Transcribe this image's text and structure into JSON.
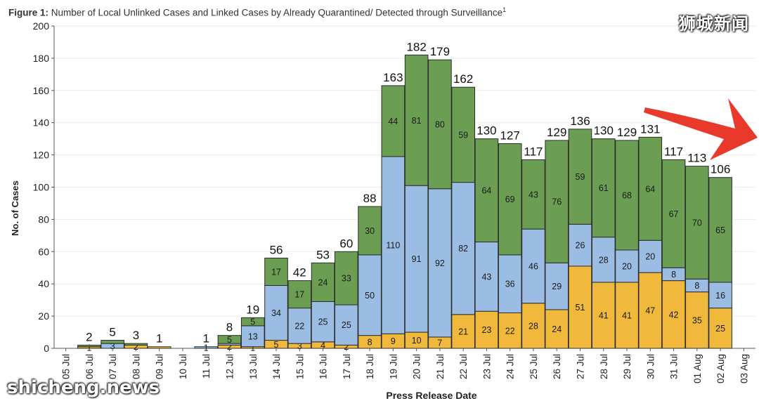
{
  "figure": {
    "label": "Figure 1:",
    "caption": "Number of Local Unlinked Cases and Linked Cases by Already Quarantined/ Detected through Surveillance",
    "footnote_marker": "1"
  },
  "watermarks": {
    "top_right": "狮城新闻",
    "bottom_left": "shicheng.news"
  },
  "annotation": {
    "shape": "red-arrow-icon",
    "color": "#e8392a"
  },
  "chart_data": {
    "type": "bar",
    "stacked": true,
    "xlabel": "Press Release Date",
    "ylabel": "No. of Cases",
    "ylim": [
      0,
      200
    ],
    "yticks": [
      0,
      20,
      40,
      60,
      80,
      100,
      120,
      140,
      160,
      180,
      200
    ],
    "grid": true,
    "categories": [
      "05 Jul",
      "06 Jul",
      "07 Jul",
      "08 Jul",
      "09 Jul",
      "10 Jul",
      "11 Jul",
      "12 Jul",
      "13 Jul",
      "14 Jul",
      "15 Jul",
      "16 Jul",
      "17 Jul",
      "18 Jul",
      "19 Jul",
      "20 Jul",
      "21 Jul",
      "22 Jul",
      "23 Jul",
      "24 Jul",
      "25 Jul",
      "26 Jul",
      "27 Jul",
      "28 Jul",
      "29 Jul",
      "30 Jul",
      "31 Jul",
      "01 Aug",
      "02 Aug",
      "03 Aug"
    ],
    "series": [
      {
        "color": "#f0b93c",
        "values": [
          null,
          1,
          null,
          2,
          1,
          null,
          null,
          2,
          1,
          5,
          3,
          4,
          2,
          8,
          9,
          10,
          7,
          21,
          23,
          22,
          28,
          24,
          51,
          41,
          41,
          47,
          42,
          35,
          25,
          null
        ],
        "labels": [
          "",
          "1",
          "",
          "2",
          "",
          "",
          "",
          "2",
          "1",
          "5",
          "3",
          "4",
          "2",
          "8",
          "9",
          "10",
          "7",
          "21",
          "23",
          "22",
          "28",
          "24",
          "51",
          "41",
          "41",
          "47",
          "42",
          "35",
          "25",
          ""
        ]
      },
      {
        "color": "#9bbde3",
        "values": [
          null,
          null,
          3,
          null,
          null,
          null,
          1,
          1,
          13,
          34,
          22,
          25,
          25,
          50,
          110,
          91,
          92,
          82,
          43,
          36,
          46,
          29,
          26,
          28,
          20,
          20,
          8,
          8,
          16,
          null
        ],
        "labels": [
          "",
          "",
          "3",
          "",
          "",
          "",
          "1",
          "",
          "13",
          "34",
          "22",
          "25",
          "25",
          "50",
          "110",
          "91",
          "92",
          "82",
          "43",
          "36",
          "46",
          "29",
          "26",
          "28",
          "20",
          "20",
          "8",
          "8",
          "16",
          ""
        ]
      },
      {
        "color": "#6b9e52",
        "values": [
          null,
          1,
          2,
          1,
          null,
          null,
          null,
          5,
          5,
          17,
          17,
          24,
          33,
          30,
          44,
          81,
          80,
          59,
          64,
          69,
          43,
          76,
          59,
          61,
          68,
          64,
          67,
          70,
          65,
          null
        ],
        "labels": [
          "",
          "",
          "",
          "",
          "",
          "",
          "",
          "5",
          "5",
          "17",
          "17",
          "24",
          "33",
          "30",
          "44",
          "81",
          "80",
          "59",
          "64",
          "69",
          "43",
          "76",
          "59",
          "61",
          "68",
          "64",
          "67",
          "70",
          "65",
          ""
        ]
      }
    ],
    "totals": [
      null,
      2,
      5,
      3,
      1,
      null,
      1,
      8,
      19,
      56,
      42,
      53,
      60,
      88,
      163,
      182,
      179,
      162,
      130,
      127,
      117,
      129,
      136,
      130,
      129,
      131,
      117,
      113,
      106,
      null
    ]
  }
}
